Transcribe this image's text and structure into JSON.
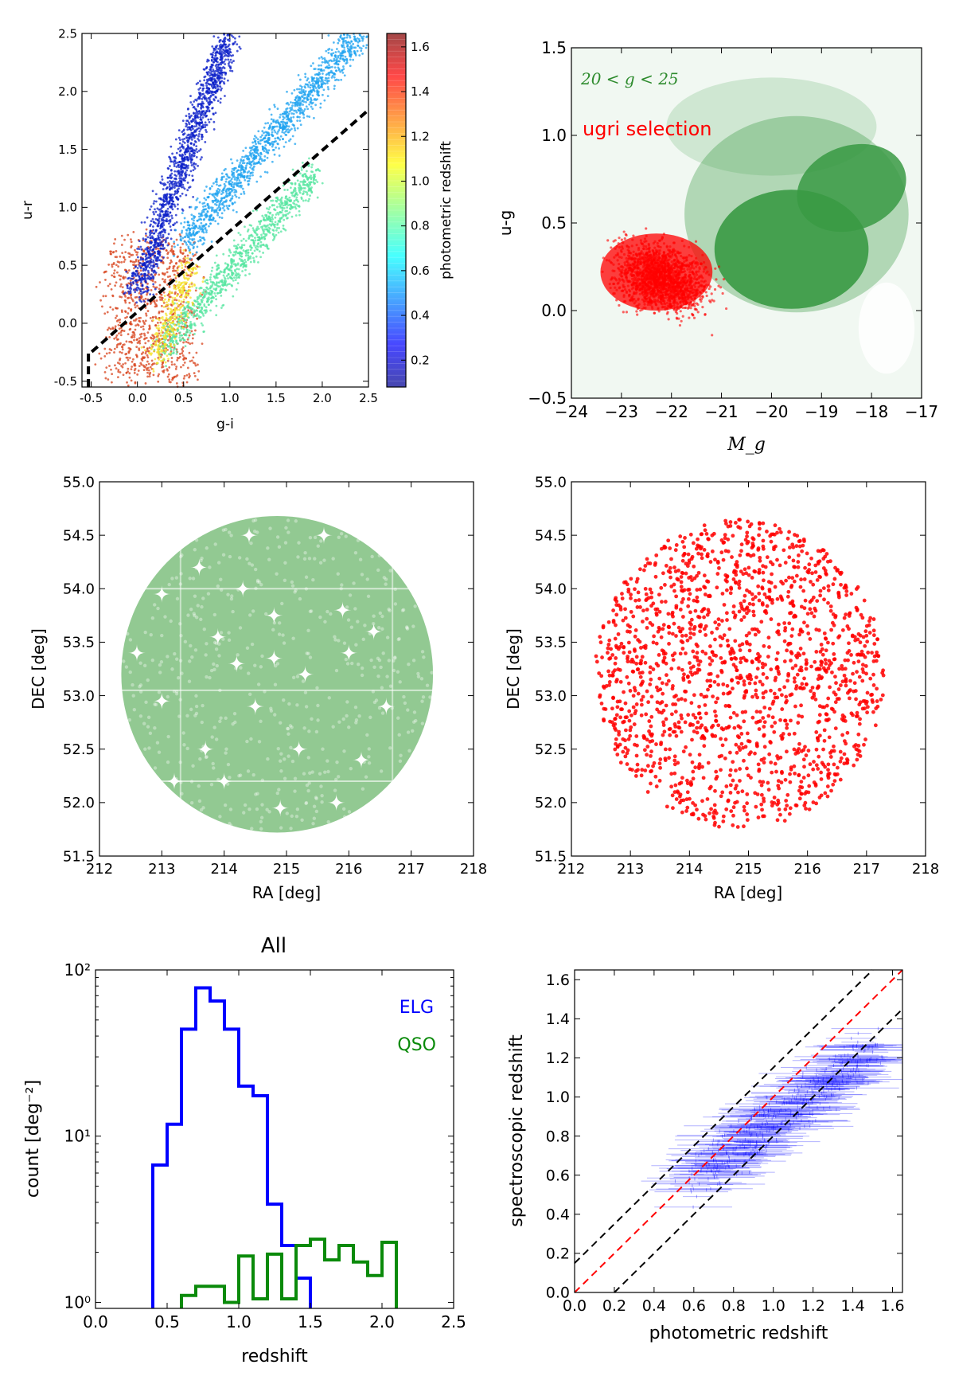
{
  "chart_data": [
    {
      "id": "p1",
      "type": "scatter",
      "xlabel": "g-i",
      "ylabel": "u-r",
      "xlim": [
        -0.6,
        2.5
      ],
      "ylim": [
        -0.55,
        2.5
      ],
      "xticks": [
        -0.5,
        0.0,
        0.5,
        1.0,
        1.5,
        2.0,
        2.5
      ],
      "xtick_labels": [
        "-0.5",
        "0.0",
        "0.5",
        "1.0",
        "1.5",
        "2.0",
        "2.5"
      ],
      "yticks": [
        -0.5,
        0.0,
        0.5,
        1.0,
        1.5,
        2.0,
        2.5
      ],
      "ytick_labels": [
        "-0.5",
        "0.0",
        "0.5",
        "1.0",
        "1.5",
        "2.0",
        "2.5"
      ],
      "colorbar": {
        "label": "photometric redshift",
        "range": [
          0.08,
          1.66
        ],
        "colormap": "jet",
        "ticks": [
          0.2,
          0.4,
          0.6,
          0.8,
          1.0,
          1.2,
          1.4,
          1.6
        ],
        "tick_labels": [
          "0.2",
          "0.4",
          "0.6",
          "0.8",
          "1.0",
          "1.2",
          "1.4",
          "1.6"
        ]
      },
      "clouds": [
        {
          "x_range": [
            -0.3,
            0.6
          ],
          "y_range": [
            -0.5,
            0.7
          ],
          "redshift": 1.5,
          "color": "#d8441d"
        },
        {
          "x_range": [
            0.0,
            1.0
          ],
          "y_range": [
            0.3,
            2.5
          ],
          "redshift": 0.25,
          "color": "#0b1fc8"
        },
        {
          "x_range": [
            0.5,
            2.4
          ],
          "y_range": [
            0.7,
            2.5
          ],
          "redshift": 0.5,
          "color": "#1fa3f0"
        },
        {
          "x_range": [
            0.3,
            1.9
          ],
          "y_range": [
            -0.2,
            1.3
          ],
          "redshift": 0.8,
          "color": "#55e6a0"
        },
        {
          "x_range": [
            0.2,
            0.6
          ],
          "y_range": [
            -0.3,
            0.5
          ],
          "redshift": 1.05,
          "color": "#f4e22a"
        }
      ],
      "selection_line": {
        "x": [
          -0.53,
          -0.53,
          -0.5,
          2.5
        ],
        "y": [
          -0.55,
          -0.25,
          -0.25,
          1.84
        ],
        "style": "dashed",
        "color": "#000000"
      }
    },
    {
      "id": "p2",
      "type": "scatter",
      "xlabel": "M_g",
      "ylabel": "u-g",
      "xlim": [
        -24,
        -17
      ],
      "ylim": [
        -0.5,
        1.5
      ],
      "xticks": [
        -24,
        -23,
        -22,
        -21,
        -20,
        -19,
        -18,
        -17
      ],
      "xtick_labels": [
        "−24",
        "−23",
        "−22",
        "−21",
        "−20",
        "−19",
        "−18",
        "−17"
      ],
      "yticks": [
        -0.5,
        0.0,
        0.5,
        1.0,
        1.5
      ],
      "ytick_labels": [
        "−0.5",
        "0.0",
        "0.5",
        "1.0",
        "1.5"
      ],
      "annotations": [
        {
          "text": "20 < g < 25",
          "color": "#2e8b2e"
        },
        {
          "text": "ugri selection",
          "color": "#ff0000"
        }
      ],
      "series": [
        {
          "name": "20 < g < 25",
          "color": "#3a9a44",
          "density_region": {
            "x_range": [
              -24,
              -17
            ],
            "y_range": [
              -0.5,
              1.5
            ]
          }
        },
        {
          "name": "ugri selection",
          "color": "#ff0000",
          "density_region": {
            "x_range": [
              -24,
              -20.3
            ],
            "y_range": [
              -0.45,
              0.6
            ]
          }
        }
      ]
    },
    {
      "id": "p3",
      "type": "scatter",
      "xlabel": "RA [deg]",
      "ylabel": "DEC [deg]",
      "xlim": [
        212,
        218
      ],
      "ylim": [
        51.5,
        55.0
      ],
      "xticks": [
        212,
        213,
        214,
        215,
        216,
        217,
        218
      ],
      "xtick_labels": [
        "212",
        "213",
        "214",
        "215",
        "216",
        "217",
        "218"
      ],
      "yticks": [
        51.5,
        52.0,
        52.5,
        53.0,
        53.5,
        54.0,
        54.5,
        55.0
      ],
      "ytick_labels": [
        "51.5",
        "52.0",
        "52.5",
        "53.0",
        "53.5",
        "54.0",
        "54.5",
        "55.0"
      ],
      "footprint": {
        "center": [
          214.85,
          53.2
        ],
        "radius_ra": 2.5,
        "radius_dec": 1.48
      },
      "color": "#7fbf7f",
      "masked_stars": [
        [
          214.4,
          54.5
        ],
        [
          213.6,
          54.2
        ],
        [
          215.6,
          54.5
        ],
        [
          213.0,
          53.95
        ],
        [
          214.3,
          54.0
        ],
        [
          215.9,
          53.8
        ],
        [
          214.8,
          53.75
        ],
        [
          213.9,
          53.55
        ],
        [
          216.4,
          53.6
        ],
        [
          212.6,
          53.4
        ],
        [
          214.2,
          53.3
        ],
        [
          216.0,
          53.4
        ],
        [
          215.3,
          53.2
        ],
        [
          213.0,
          52.95
        ],
        [
          214.5,
          52.9
        ],
        [
          213.7,
          52.5
        ],
        [
          215.2,
          52.5
        ],
        [
          214.0,
          52.2
        ],
        [
          216.2,
          52.4
        ],
        [
          215.8,
          52.0
        ],
        [
          214.9,
          51.95
        ],
        [
          213.2,
          52.2
        ],
        [
          216.6,
          52.9
        ],
        [
          214.8,
          53.35
        ]
      ]
    },
    {
      "id": "p4",
      "type": "scatter",
      "xlabel": "RA [deg]",
      "ylabel": "DEC [deg]",
      "xlim": [
        212,
        218
      ],
      "ylim": [
        51.5,
        55.0
      ],
      "xticks": [
        212,
        213,
        214,
        215,
        216,
        217,
        218
      ],
      "xtick_labels": [
        "212",
        "213",
        "214",
        "215",
        "216",
        "217",
        "218"
      ],
      "yticks": [
        51.5,
        52.0,
        52.5,
        53.0,
        53.5,
        54.0,
        54.5,
        55.0
      ],
      "ytick_labels": [
        "51.5",
        "52.0",
        "52.5",
        "53.0",
        "53.5",
        "54.0",
        "54.5",
        "55.0"
      ],
      "footprint": {
        "center": [
          214.85,
          53.2
        ],
        "radius_ra": 2.45,
        "radius_dec": 1.45
      },
      "color": "#ff0000"
    },
    {
      "id": "p5",
      "type": "line",
      "title": "All",
      "xlabel": "redshift",
      "ylabel": "count [deg⁻²]",
      "yscale": "log",
      "xlim": [
        0.0,
        2.5
      ],
      "ylim": [
        0.92,
        100
      ],
      "xticks": [
        0.0,
        0.5,
        1.0,
        1.5,
        2.0,
        2.5
      ],
      "xtick_labels": [
        "0.0",
        "0.5",
        "1.0",
        "1.5",
        "2.0",
        "2.5"
      ],
      "yticks": [
        1,
        10,
        100
      ],
      "ytick_labels": [
        "10⁰",
        "10¹",
        "10²"
      ],
      "bin_edges": [
        0.4,
        0.5,
        0.6,
        0.7,
        0.8,
        0.9,
        1.0,
        1.1,
        1.2,
        1.3,
        1.4,
        1.5,
        1.6,
        1.7,
        1.8,
        1.9,
        2.0,
        2.1,
        2.2,
        2.3
      ],
      "series": [
        {
          "name": "ELG",
          "color": "#0000ff",
          "values": [
            6.7,
            11.8,
            44,
            78,
            65,
            44,
            20,
            17.5,
            3.9,
            2.2,
            1.4
          ],
          "start": 0.4
        },
        {
          "name": "QSO",
          "color": "#0a8a0a",
          "values": [
            1.1,
            1.25,
            1.25,
            1.0,
            1.9,
            1.05,
            1.95,
            1.05,
            2.2,
            2.4,
            1.8,
            2.2,
            1.75,
            1.45,
            2.3
          ],
          "start": 0.6
        }
      ]
    },
    {
      "id": "p6",
      "type": "scatter",
      "xlabel": "photometric redshift",
      "ylabel": "spectroscopic redshift",
      "xlim": [
        0.0,
        1.65
      ],
      "ylim": [
        0.0,
        1.65
      ],
      "xticks": [
        0.0,
        0.2,
        0.4,
        0.6,
        0.8,
        1.0,
        1.2,
        1.4,
        1.6
      ],
      "xtick_labels": [
        "0.0",
        "0.2",
        "0.4",
        "0.6",
        "0.8",
        "1.0",
        "1.2",
        "1.4",
        "1.6"
      ],
      "yticks": [
        0.0,
        0.2,
        0.4,
        0.6,
        0.8,
        1.0,
        1.2,
        1.4,
        1.6
      ],
      "ytick_labels": [
        "0.0",
        "0.2",
        "0.4",
        "0.6",
        "0.8",
        "1.0",
        "1.2",
        "1.4",
        "1.6"
      ],
      "lines": [
        {
          "slope": 1.0,
          "intercept": 0.0,
          "color": "#ff0000",
          "style": "dashed"
        },
        {
          "slope": 1.0,
          "intercept": 0.15,
          "color": "#000000",
          "style": "dashed"
        },
        {
          "slope": 1.0,
          "intercept": -0.2,
          "color": "#000000",
          "style": "dashed"
        }
      ],
      "series": [
        {
          "color": "#0000ff",
          "x_range": [
            0.55,
            1.65
          ],
          "y_range": [
            0.45,
            1.4
          ],
          "error_bars": "horizontal"
        }
      ]
    }
  ]
}
